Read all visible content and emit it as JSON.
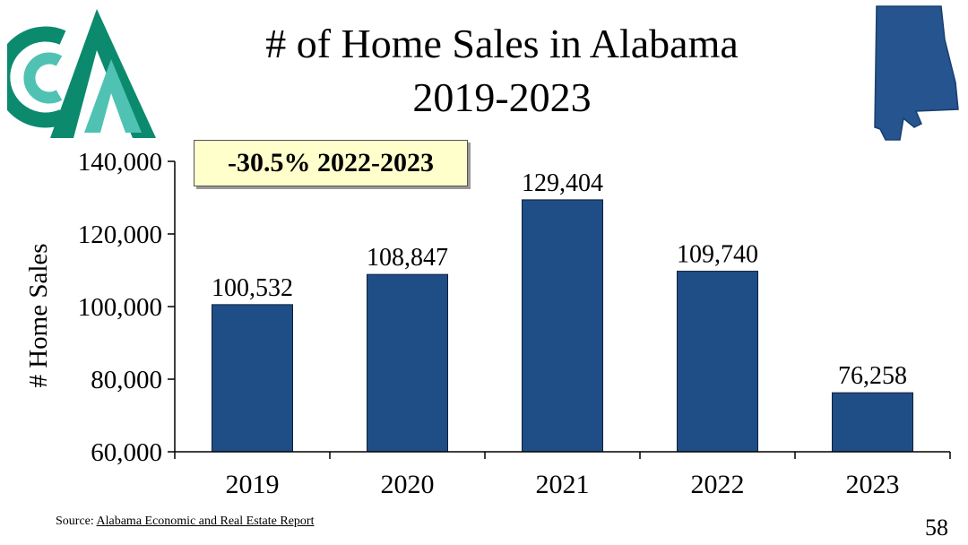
{
  "title": {
    "line1": "# of Home Sales in Alabama",
    "line2": "2019-2023"
  },
  "callout": "-30.5% 2022-2023",
  "source": {
    "prefix": "Source: ",
    "link": "Alabama Economic and Real Estate Report"
  },
  "page_number": "58",
  "colors": {
    "bar": "#1f4e86",
    "bar_edge": "#0d1f3c",
    "logo_dark": "#0b8a6e",
    "logo_light": "#4fc2b3",
    "state": "#25548f"
  },
  "icons": {
    "logo": "company-logo",
    "state": "alabama-state-map"
  },
  "chart_data": {
    "type": "bar",
    "categories": [
      "2019",
      "2020",
      "2021",
      "2022",
      "2023"
    ],
    "values": [
      100532,
      108847,
      129404,
      109740,
      76258
    ],
    "data_labels": [
      "100,532",
      "108,847",
      "129,404",
      "109,740",
      "76,258"
    ],
    "ylabel": "# Home Sales",
    "ylim": [
      60000,
      140000
    ],
    "yticks": [
      60000,
      80000,
      100000,
      120000,
      140000
    ],
    "ytick_labels": [
      "60,000",
      "80,000",
      "100,000",
      "120,000",
      "140,000"
    ],
    "grid": false,
    "legend": "none"
  }
}
